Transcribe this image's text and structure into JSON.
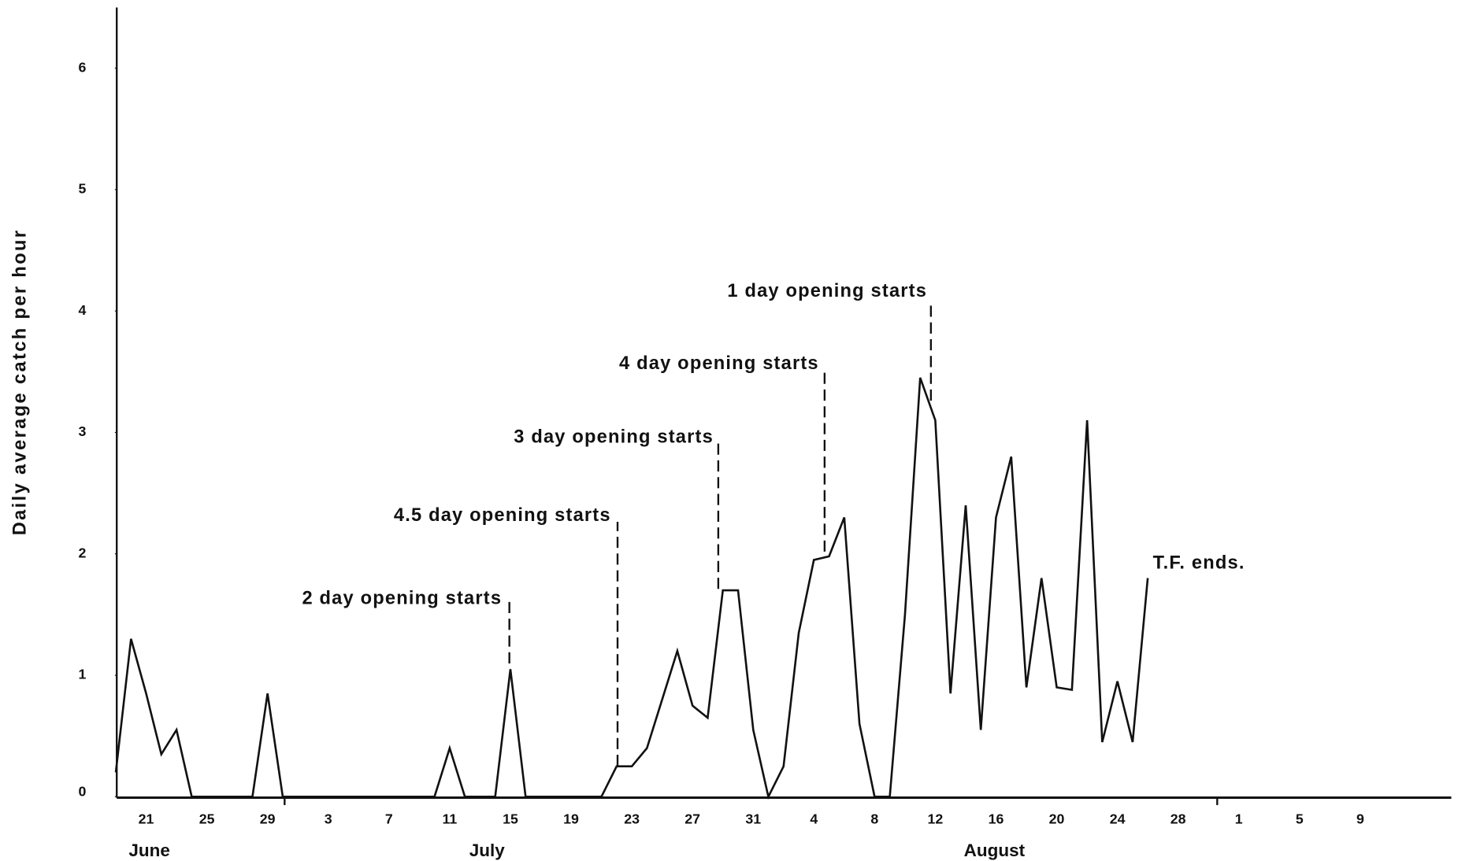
{
  "chart_data": {
    "type": "line",
    "y_label": "Daily average catch per hour",
    "categories": [
      null,
      null,
      "21",
      null,
      null,
      null,
      "25",
      null,
      null,
      null,
      "29",
      null,
      null,
      null,
      "3",
      null,
      null,
      null,
      "7",
      null,
      null,
      null,
      "11",
      null,
      null,
      null,
      "15",
      null,
      null,
      null,
      "19",
      null,
      null,
      null,
      "23",
      null,
      null,
      null,
      "27",
      null,
      null,
      null,
      "31",
      null,
      null,
      null,
      "4",
      null,
      null,
      null,
      "8",
      null,
      null,
      null,
      "12",
      null,
      null,
      null,
      "16",
      null,
      null,
      null,
      "20",
      null,
      null,
      null,
      "24",
      null,
      null,
      null,
      "28",
      null,
      null,
      null,
      "1",
      null,
      null,
      null,
      "5",
      null,
      null,
      null,
      "9",
      null,
      null,
      null,
      null,
      null,
      null
    ],
    "months": [
      "June",
      "July",
      "August"
    ],
    "series": [
      {
        "color": "#111111",
        "values": [
          0.2,
          1.3,
          0.85,
          0.35,
          0.55,
          0,
          0,
          0,
          0,
          0,
          0.85,
          0,
          0,
          0,
          0,
          0,
          0,
          0,
          0,
          0,
          0,
          0,
          0.4,
          0,
          0,
          0,
          1.05,
          0,
          0,
          0,
          0,
          0,
          0,
          0.25,
          0.25,
          0.4,
          0.8,
          1.2,
          0.75,
          0.65,
          1.7,
          1.7,
          0.55,
          0,
          0.25,
          1.35,
          1.95,
          1.98,
          2.3,
          0.6,
          0,
          0,
          1.5,
          3.45,
          3.1,
          0.85,
          2.4,
          0.55,
          2.3,
          2.8,
          0.9,
          1.8,
          0.9,
          0.88,
          3.1,
          0.45,
          0.95,
          0.45,
          1.8,
          null,
          null,
          null,
          null,
          null,
          null,
          null,
          null,
          null,
          null,
          null,
          null,
          null,
          null,
          null,
          null,
          null,
          null,
          null,
          null
        ]
      }
    ],
    "annotations": [
      "2 day opening starts",
      "4.5 day opening starts",
      "3 day opening starts",
      "4 day opening starts",
      "1 day opening starts",
      "T.F. ends."
    ],
    "ylim": [
      0,
      6.5
    ],
    "yticks": [
      0,
      1,
      2,
      3,
      4,
      5,
      6
    ]
  }
}
